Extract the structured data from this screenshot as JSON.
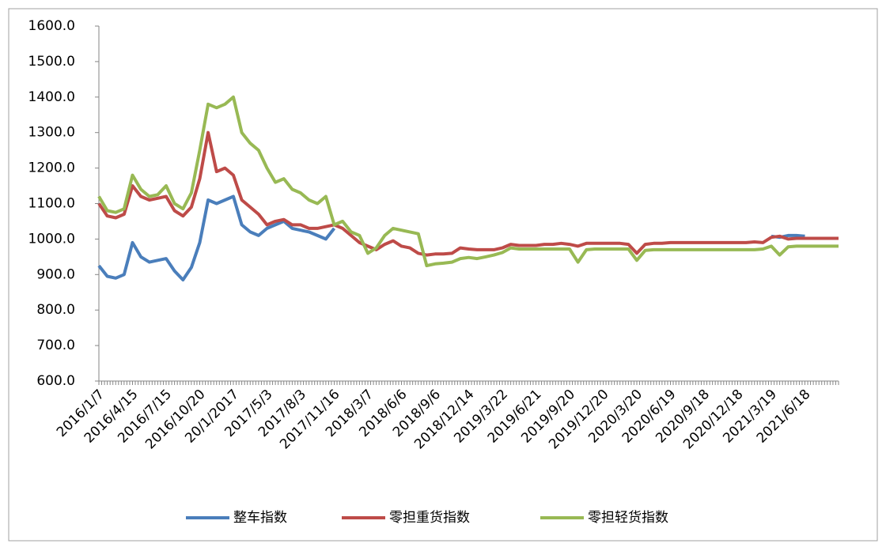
{
  "chart_data": {
    "type": "line",
    "categories": [
      "2016/1/7",
      null,
      null,
      null,
      "2016/4/15",
      null,
      null,
      null,
      "2016/7/15",
      null,
      null,
      null,
      "2016/10/20",
      null,
      null,
      null,
      "20/1/2017",
      null,
      null,
      null,
      "2017/5/3",
      null,
      null,
      null,
      "2017/8/3",
      null,
      null,
      null,
      "2017/11/16",
      null,
      null,
      null,
      "2018/3/7",
      null,
      null,
      null,
      "2018/6/6",
      null,
      null,
      null,
      "2018/9/6",
      null,
      null,
      null,
      "2018/12/14",
      null,
      null,
      null,
      "2019/3/22",
      null,
      null,
      null,
      "2019/6/21",
      null,
      null,
      null,
      "2019/9/20",
      null,
      null,
      null,
      "2019/12/20",
      null,
      null,
      null,
      "2020/3/20",
      null,
      null,
      null,
      "2020/6/19",
      null,
      null,
      null,
      "2020/9/18",
      null,
      null,
      null,
      "2020/12/18",
      null,
      null,
      null,
      "2021/3/19",
      null,
      null,
      null,
      "2021/6/18",
      null,
      null,
      null,
      null
    ],
    "series": [
      {
        "name": "整车指数",
        "color": "#4a7ebb",
        "values": [
          925,
          895,
          890,
          900,
          990,
          950,
          935,
          940,
          945,
          910,
          885,
          920,
          990,
          1110,
          1100,
          1110,
          1120,
          1040,
          1020,
          1010,
          1030,
          1040,
          1050,
          1030,
          1025,
          1020,
          1010,
          1000,
          1030,
          null,
          null,
          null,
          null,
          null,
          null,
          null,
          null,
          null,
          null,
          null,
          null,
          null,
          null,
          null,
          null,
          null,
          null,
          null,
          null,
          null,
          null,
          null,
          null,
          null,
          null,
          null,
          null,
          null,
          null,
          null,
          null,
          null,
          null,
          null,
          null,
          null,
          null,
          null,
          null,
          null,
          null,
          null,
          null,
          null,
          null,
          null,
          null,
          null,
          null,
          null,
          1008,
          1005,
          1010,
          1010,
          1008,
          null,
          null,
          null,
          null
        ]
      },
      {
        "name": "零担重货指数",
        "color": "#be4b48",
        "values": [
          1100,
          1065,
          1060,
          1070,
          1150,
          1120,
          1110,
          1115,
          1120,
          1080,
          1065,
          1090,
          1170,
          1300,
          1190,
          1200,
          1180,
          1110,
          1090,
          1070,
          1040,
          1050,
          1055,
          1040,
          1040,
          1030,
          1030,
          1035,
          1040,
          1030,
          1010,
          990,
          980,
          970,
          985,
          995,
          980,
          975,
          960,
          955,
          958,
          958,
          960,
          975,
          972,
          970,
          970,
          970,
          975,
          985,
          982,
          982,
          982,
          985,
          985,
          988,
          985,
          980,
          988,
          988,
          988,
          988,
          988,
          985,
          960,
          985,
          988,
          988,
          990,
          990,
          990,
          990,
          990,
          990,
          990,
          990,
          990,
          990,
          992,
          990,
          1005,
          1008,
          1000,
          1002,
          1002,
          1002,
          1002,
          1002,
          1002
        ]
      },
      {
        "name": "零担轻货指数",
        "color": "#98b954",
        "values": [
          1120,
          1080,
          1075,
          1085,
          1180,
          1140,
          1120,
          1125,
          1150,
          1100,
          1085,
          1130,
          1250,
          1380,
          1370,
          1380,
          1400,
          1300,
          1270,
          1250,
          1200,
          1160,
          1170,
          1140,
          1130,
          1110,
          1100,
          1120,
          1040,
          1050,
          1020,
          1010,
          960,
          975,
          1010,
          1030,
          1025,
          1020,
          1015,
          925,
          930,
          932,
          935,
          945,
          948,
          945,
          950,
          955,
          962,
          975,
          972,
          972,
          972,
          972,
          972,
          972,
          972,
          935,
          970,
          972,
          972,
          972,
          972,
          972,
          940,
          968,
          970,
          970,
          970,
          970,
          970,
          970,
          970,
          970,
          970,
          970,
          970,
          970,
          970,
          972,
          980,
          955,
          978,
          980,
          980,
          980,
          980,
          980,
          980
        ]
      }
    ],
    "ylim": [
      600,
      1600
    ],
    "yticks": [
      {
        "value": 600,
        "label": "600.0"
      },
      {
        "value": 700,
        "label": "700.0"
      },
      {
        "value": 800,
        "label": "800.0"
      },
      {
        "value": 900,
        "label": "900.0"
      },
      {
        "value": 1000,
        "label": "1000.0"
      },
      {
        "value": 1100,
        "label": "1100.0"
      },
      {
        "value": 1200,
        "label": "1200.0"
      },
      {
        "value": 1300,
        "label": "1300.0"
      },
      {
        "value": 1400,
        "label": "1400.0"
      },
      {
        "value": 1500,
        "label": "1500.0"
      },
      {
        "value": 1600,
        "label": "1600.0"
      }
    ],
    "grid": false,
    "legend": "bottom"
  }
}
